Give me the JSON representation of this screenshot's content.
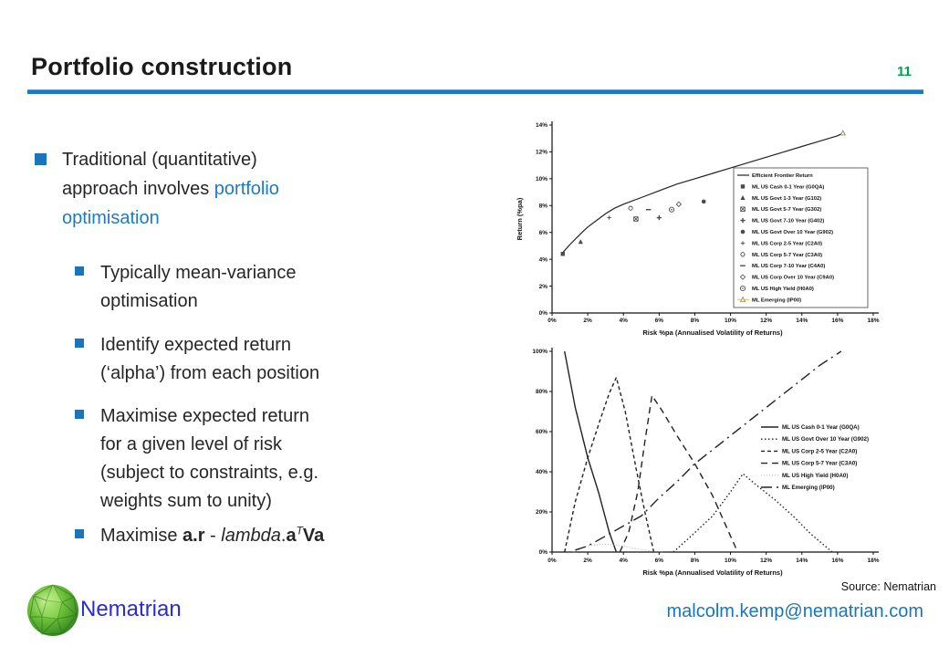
{
  "slide": {
    "title": "Portfolio construction",
    "page_number": "11",
    "accent_blue": "#1b75bc",
    "link_blue": "#1f7ac2",
    "page_number_green": "#00a14b"
  },
  "content": {
    "bullet1": {
      "text_before": "Traditional (quantitative)\napproach involves ",
      "link_text": "portfolio\noptimisation"
    },
    "sub_bullets": [
      {
        "text": "Typically mean-variance\noptimisation"
      },
      {
        "text": "Identify expected return\n(‘alpha’) from each position"
      },
      {
        "text": "Maximise expected return\nfor a given level of risk\n(subject to constraints, e.g.\nweights sum to unity)"
      }
    ],
    "formula": {
      "prefix": "Maximise ",
      "bold_ar": "a.r",
      "separator": " - ",
      "lambda_italic": "lambda",
      "dot": ".",
      "bold_a": "a",
      "superscript_T": "T",
      "bold_Va": "Va"
    }
  },
  "footer": {
    "logo_label": "Nematrian",
    "source_label": "Source: Nematrian",
    "email": "malcolm.kemp@nematrian.com"
  },
  "chart_data": [
    {
      "type": "scatter",
      "title": "",
      "xlabel": "Risk %pa (Annualised Volatility of Returns)",
      "ylabel": "Return (%pa)",
      "xlim": [
        0,
        18
      ],
      "ylim": [
        0,
        14
      ],
      "xticks": [
        0,
        2,
        4,
        6,
        8,
        10,
        12,
        14,
        16,
        18
      ],
      "xtick_labels": [
        "0%",
        "2%",
        "4%",
        "6%",
        "8%",
        "10%",
        "12%",
        "14%",
        "16%",
        "18%"
      ],
      "yticks": [
        0,
        2,
        4,
        6,
        8,
        10,
        12,
        14
      ],
      "ytick_labels": [
        "0%",
        "2%",
        "4%",
        "6%",
        "8%",
        "10%",
        "12%",
        "14%"
      ],
      "grid": false,
      "legend_position": "inside right, boxed",
      "frontier": {
        "name": "Efficient Frontier Return",
        "x": [
          0.6,
          1.0,
          1.6,
          2.0,
          2.5,
          3.0,
          3.5,
          4.0,
          5.0,
          6.0,
          7.0,
          8.0,
          9.0,
          10.0,
          11.0,
          12.0,
          13.0,
          14.0,
          15.0,
          16.0,
          16.3
        ],
        "y": [
          4.5,
          5.1,
          5.9,
          6.4,
          6.9,
          7.4,
          7.8,
          8.1,
          8.6,
          9.1,
          9.6,
          10.0,
          10.4,
          10.8,
          11.2,
          11.6,
          12.0,
          12.4,
          12.8,
          13.2,
          13.4
        ]
      },
      "points": [
        {
          "name": "ML US Cash 0-1 Year (G0QA)",
          "marker": "square-filled",
          "x": 0.6,
          "y": 4.4
        },
        {
          "name": "ML US Govt 1-3 Year (G102)",
          "marker": "triangle-filled",
          "x": 1.6,
          "y": 5.3
        },
        {
          "name": "ML US Govt 5-7 Year (G302)",
          "marker": "square-x",
          "x": 4.7,
          "y": 7.0
        },
        {
          "name": "ML US Govt 7-10 Year (G402)",
          "marker": "plus",
          "x": 6.0,
          "y": 7.1
        },
        {
          "name": "ML US Govt Over 10 Year (G902)",
          "marker": "circle-filled",
          "x": 8.5,
          "y": 8.3
        },
        {
          "name": "ML US Corp 2-5 Year (C2A0)",
          "marker": "plus-thin",
          "x": 3.2,
          "y": 7.1
        },
        {
          "name": "ML US Corp 5-7 Year (C3A0)",
          "marker": "circle-open",
          "x": 4.4,
          "y": 7.8
        },
        {
          "name": "ML US Corp 7-10 Year (C4A0)",
          "marker": "dash",
          "x": 5.4,
          "y": 7.7
        },
        {
          "name": "ML US Corp Over 10 Year (C9A0)",
          "marker": "diamond-open",
          "x": 7.1,
          "y": 8.1
        },
        {
          "name": "ML US High Yield (H0A0)",
          "marker": "circle-double",
          "x": 6.7,
          "y": 7.7
        },
        {
          "name": "ML Emerging (IP00)",
          "marker": "triangle-open",
          "x": 16.3,
          "y": 13.4
        }
      ],
      "legend": [
        {
          "label": "Efficient Frontier Return",
          "sample": "line"
        },
        {
          "label": "ML US Cash 0-1 Year (G0QA)",
          "sample": "square-filled"
        },
        {
          "label": "ML US Govt 1-3 Year (G102)",
          "sample": "triangle-filled"
        },
        {
          "label": "ML US Govt 5-7 Year (G302)",
          "sample": "square-x"
        },
        {
          "label": "ML US Govt 7-10 Year (G402)",
          "sample": "plus"
        },
        {
          "label": "ML US Govt Over 10 Year (G902)",
          "sample": "circle-filled"
        },
        {
          "label": "ML US Corp 2-5 Year (C2A0)",
          "sample": "plus-thin"
        },
        {
          "label": "ML US Corp 5-7 Year (C3A0)",
          "sample": "circle-open"
        },
        {
          "label": "ML US Corp 7-10 Year (C4A0)",
          "sample": "dash"
        },
        {
          "label": "ML US Corp Over 10 Year (C9A0)",
          "sample": "diamond-open"
        },
        {
          "label": "ML US High Yield (H0A0)",
          "sample": "circle-double"
        },
        {
          "label": "ML Emerging (IP00)",
          "sample": "triangle-yellow"
        }
      ]
    },
    {
      "type": "line",
      "title": "",
      "xlabel": "Risk %pa (Annualised Volatility of Returns)",
      "ylabel": "",
      "xlim": [
        0,
        18
      ],
      "ylim": [
        0,
        100
      ],
      "xticks": [
        0,
        2,
        4,
        6,
        8,
        10,
        12,
        14,
        16,
        18
      ],
      "xtick_labels": [
        "0%",
        "2%",
        "4%",
        "6%",
        "8%",
        "10%",
        "12%",
        "14%",
        "16%",
        "18%"
      ],
      "yticks": [
        0,
        20,
        40,
        60,
        80,
        100
      ],
      "ytick_labels": [
        "0%",
        "20%",
        "40%",
        "60%",
        "80%",
        "100%"
      ],
      "grid": false,
      "legend_position": "inside right, unboxed",
      "series": [
        {
          "name": "ML US Cash 0-1 Year (G0QA)",
          "dash": "solid",
          "points": [
            [
              0.7,
              100
            ],
            [
              1.3,
              72
            ],
            [
              2.0,
              47
            ],
            [
              2.6,
              30
            ],
            [
              3.2,
              10
            ],
            [
              3.6,
              0
            ]
          ]
        },
        {
          "name": "ML US Govt Over 10 Year (G902)",
          "dash": "dotted",
          "points": [
            [
              6.8,
              0
            ],
            [
              7.8,
              8
            ],
            [
              9.0,
              18
            ],
            [
              10.0,
              30
            ],
            [
              10.7,
              39
            ],
            [
              11.5,
              33
            ],
            [
              12.5,
              26
            ],
            [
              13.5,
              18
            ],
            [
              14.5,
              9
            ],
            [
              15.7,
              0
            ]
          ]
        },
        {
          "name": "ML US Corp 2-5 Year (C2A0)",
          "dash": "shortdash",
          "points": [
            [
              0.7,
              0
            ],
            [
              1.3,
              25
            ],
            [
              2.0,
              47
            ],
            [
              2.7,
              66
            ],
            [
              3.2,
              79
            ],
            [
              3.6,
              87
            ],
            [
              4.1,
              70
            ],
            [
              4.7,
              42
            ],
            [
              5.2,
              20
            ],
            [
              5.7,
              0
            ]
          ]
        },
        {
          "name": "ML US Corp 5-7 Year (C3A0)",
          "dash": "longdash",
          "points": [
            [
              3.8,
              0
            ],
            [
              4.3,
              10
            ],
            [
              4.8,
              30
            ],
            [
              5.2,
              55
            ],
            [
              5.6,
              78
            ],
            [
              6.2,
              70
            ],
            [
              7.0,
              58
            ],
            [
              8.0,
              44
            ],
            [
              9.0,
              28
            ],
            [
              9.8,
              12
            ],
            [
              10.4,
              0
            ]
          ]
        },
        {
          "name": "ML US High Yield (H0A0)",
          "dash": "finedot",
          "points": [
            [
              1.2,
              0
            ],
            [
              2.0,
              3
            ],
            [
              2.8,
              4
            ],
            [
              3.6,
              3.5
            ],
            [
              4.5,
              2
            ],
            [
              5.5,
              0.5
            ],
            [
              6.3,
              0
            ]
          ]
        },
        {
          "name": "ML Emerging (IP00)",
          "dash": "dashdot",
          "points": [
            [
              1.3,
              1
            ],
            [
              2.0,
              3
            ],
            [
              3.0,
              8
            ],
            [
              4.0,
              13
            ],
            [
              5.0,
              18
            ],
            [
              6.0,
              27
            ],
            [
              7.0,
              35
            ],
            [
              8.0,
              44
            ],
            [
              9.0,
              51
            ],
            [
              10.0,
              58
            ],
            [
              11.0,
              65
            ],
            [
              12.0,
              72
            ],
            [
              13.0,
              79
            ],
            [
              14.0,
              86
            ],
            [
              15.0,
              93
            ],
            [
              16.2,
              100
            ]
          ]
        }
      ],
      "legend": [
        {
          "label": "ML US Cash 0-1 Year (G0QA)",
          "dash": "solid"
        },
        {
          "label": "ML US Govt Over 10 Year (G902)",
          "dash": "dotted"
        },
        {
          "label": "ML US Corp 2-5 Year (C2A0)",
          "dash": "shortdash"
        },
        {
          "label": "ML US Corp 5-7 Year (C3A0)",
          "dash": "longdash"
        },
        {
          "label": "ML US High Yield (H0A0)",
          "dash": "finedot"
        },
        {
          "label": "ML Emerging (IP00)",
          "dash": "dashdot"
        }
      ]
    }
  ]
}
